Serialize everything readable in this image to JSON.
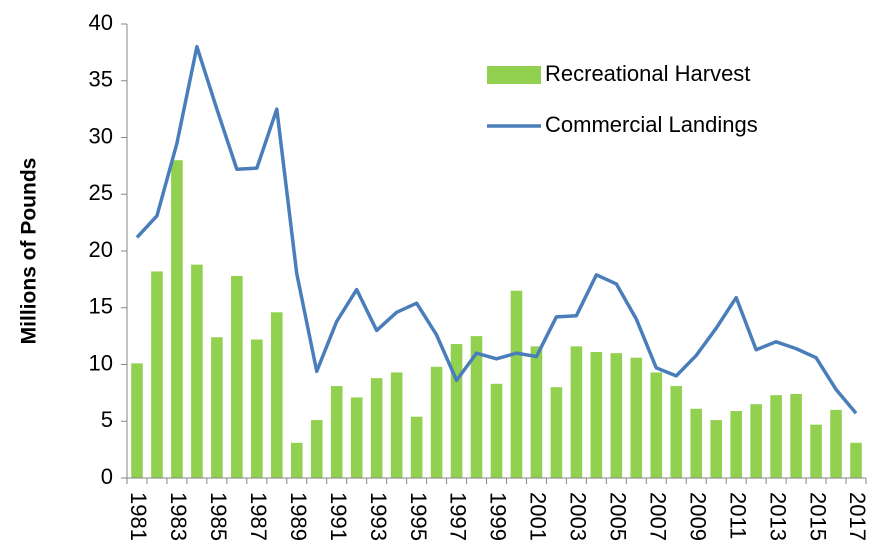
{
  "chart_data": {
    "type": "bar",
    "y_label": "Millions of Pounds",
    "categories": [
      "1981",
      null,
      "1983",
      null,
      "1985",
      null,
      "1987",
      null,
      "1989",
      null,
      "1991",
      null,
      "1993",
      null,
      "1995",
      null,
      "1997",
      null,
      "1999",
      null,
      "2001",
      null,
      "2003",
      null,
      "2005",
      null,
      "2007",
      null,
      "2009",
      null,
      "2011",
      null,
      "2013",
      null,
      "2015",
      null,
      "2017"
    ],
    "series": [
      {
        "name": "Recreational Harvest",
        "type": "bar",
        "color": "#92d050",
        "values": [
          10.1,
          18.2,
          28,
          18.8,
          12.4,
          17.8,
          12.2,
          14.6,
          3.1,
          5.1,
          8.1,
          7.1,
          8.8,
          9.3,
          5.4,
          9.8,
          11.8,
          12.5,
          8.3,
          16.5,
          11.6,
          8.0,
          11.6,
          11.1,
          11.0,
          10.6,
          9.3,
          8.1,
          6.1,
          5.1,
          5.9,
          6.5,
          7.3,
          7.4,
          4.7,
          6.0,
          3.1
        ]
      },
      {
        "name": "Commercial Landings",
        "type": "line",
        "color": "#4a7ebb",
        "values": [
          21.2,
          23.1,
          29.5,
          38.0,
          32.5,
          27.2,
          27.3,
          32.5,
          18.0,
          9.4,
          13.8,
          16.6,
          13.0,
          14.6,
          15.4,
          12.6,
          8.6,
          11.0,
          10.5,
          11.0,
          10.7,
          14.2,
          14.3,
          17.9,
          17.1,
          14.0,
          9.7,
          9.0,
          10.8,
          13.2,
          15.9,
          11.3,
          12.0,
          11.4,
          10.6,
          7.8,
          5.7
        ]
      }
    ],
    "ylim": [
      0,
      40
    ],
    "yticks": [
      0,
      5,
      10,
      15,
      20,
      25,
      30,
      35,
      40
    ],
    "grid": false,
    "legend": "top-right"
  }
}
